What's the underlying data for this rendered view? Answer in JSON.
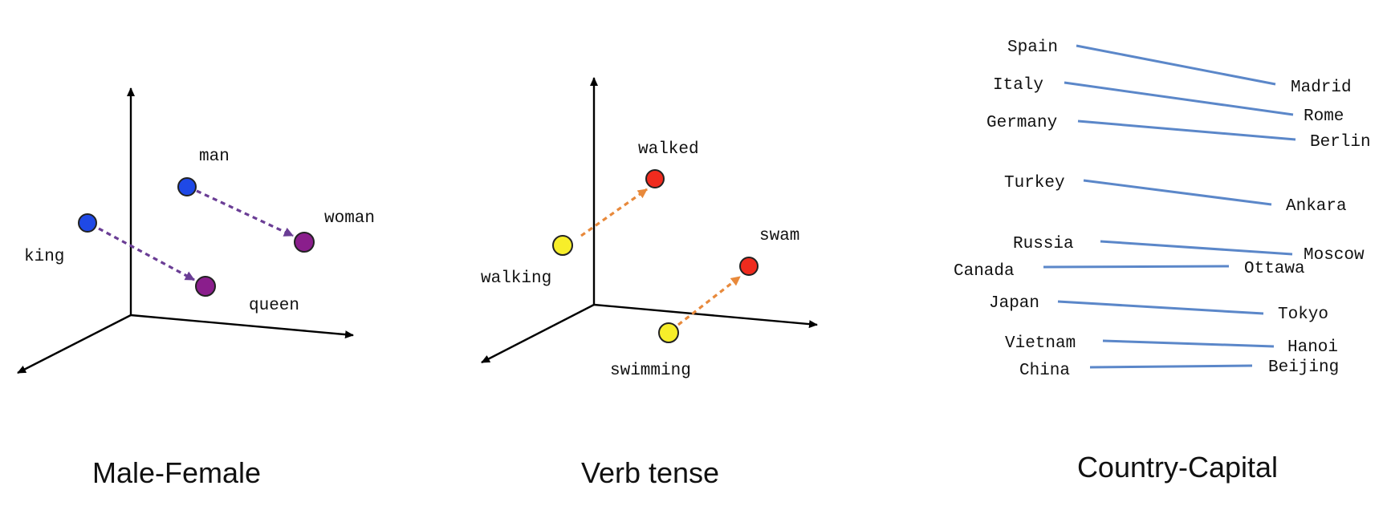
{
  "panels": [
    {
      "caption": "Male-Female",
      "words": [
        "man",
        "woman",
        "king",
        "queen"
      ],
      "colors": {
        "male": "#1f49e6",
        "female": "#8a1e8c",
        "arrow": "#6a3d95"
      }
    },
    {
      "caption": "Verb tense",
      "words": [
        "walked",
        "walking",
        "swam",
        "swimming"
      ],
      "colors": {
        "past": "#ef2b1e",
        "progressive": "#f7ee2a",
        "arrow": "#e8893b"
      }
    },
    {
      "caption": "Country-Capital",
      "pairs": [
        {
          "country": "Spain",
          "capital": "Madrid"
        },
        {
          "country": "Italy",
          "capital": "Rome"
        },
        {
          "country": "Germany",
          "capital": "Berlin"
        },
        {
          "country": "Turkey",
          "capital": "Ankara"
        },
        {
          "country": "Russia",
          "capital": "Moscow"
        },
        {
          "country": "Canada",
          "capital": "Ottawa"
        },
        {
          "country": "Japan",
          "capital": "Tokyo"
        },
        {
          "country": "Vietnam",
          "capital": "Hanoi"
        },
        {
          "country": "China",
          "capital": "Beijing"
        }
      ],
      "colors": {
        "line": "#5b87c9"
      }
    }
  ]
}
